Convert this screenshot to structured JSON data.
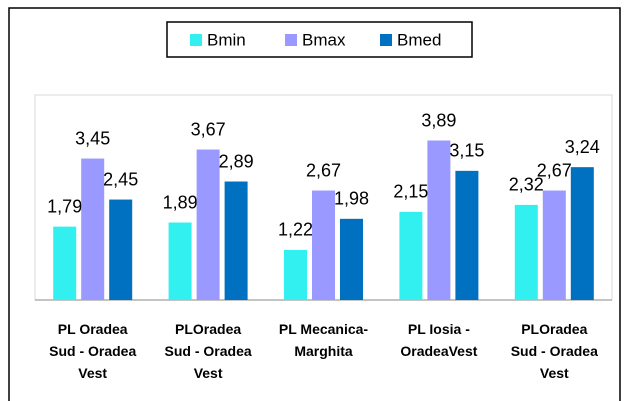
{
  "chart_data": {
    "type": "bar",
    "categories": [
      "PL Oradea\nSud - Oradea\nVest",
      "PLOradea\nSud - Oradea\nVest",
      "PL Mecanica-\nMarghita",
      "PL Iosia -\nOradeaVest",
      "PLOradea\nSud - Oradea\nVest"
    ],
    "series": [
      {
        "name": "Bmin",
        "color": "#33f0f0",
        "values": [
          1.79,
          1.89,
          1.22,
          2.15,
          2.32
        ],
        "value_labels": [
          "1,79",
          "1,89",
          "1,22",
          "2,15",
          "2,32"
        ]
      },
      {
        "name": "Bmax",
        "color": "#9999ff",
        "values": [
          3.45,
          3.67,
          2.67,
          3.89,
          2.67
        ],
        "value_labels": [
          "3,45",
          "3,67",
          "2,67",
          "3,89",
          "2,67"
        ]
      },
      {
        "name": "Bmed",
        "color": "#0070c0",
        "values": [
          2.45,
          2.89,
          1.98,
          3.15,
          3.24
        ],
        "value_labels": [
          "2,45",
          "2,89",
          "1,98",
          "3,15",
          "3,24"
        ]
      }
    ],
    "ylim": [
      0,
      5
    ],
    "legend": "top"
  }
}
